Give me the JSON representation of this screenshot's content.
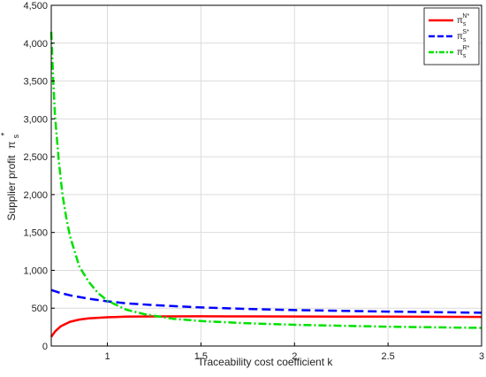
{
  "chart_data": {
    "type": "line",
    "xlabel": "Traceability cost coefficient k",
    "ylabel_main": "Supplier profit",
    "ylabel_symbol": "π",
    "ylabel_sub": "s",
    "ylabel_sup": "*",
    "xlim": [
      0.7,
      3.0
    ],
    "ylim": [
      0,
      4500
    ],
    "x_ticks": [
      {
        "v": 1,
        "label": "1"
      },
      {
        "v": 1.5,
        "label": "1.5"
      },
      {
        "v": 2,
        "label": "2"
      },
      {
        "v": 2.5,
        "label": "2.5"
      },
      {
        "v": 3,
        "label": "3"
      }
    ],
    "y_ticks": [
      {
        "v": 0,
        "label": "0"
      },
      {
        "v": 500,
        "label": "500"
      },
      {
        "v": 1000,
        "label": "1,000"
      },
      {
        "v": 1500,
        "label": "1,500"
      },
      {
        "v": 2000,
        "label": "2,000"
      },
      {
        "v": 2500,
        "label": "2,500"
      },
      {
        "v": 3000,
        "label": "3,000"
      },
      {
        "v": 3500,
        "label": "3,500"
      },
      {
        "v": 4000,
        "label": "4,000"
      },
      {
        "v": 4500,
        "label": "4,500"
      }
    ],
    "grid": true,
    "legend_position": "top-right",
    "series": [
      {
        "name_sym": "π",
        "name_sub": "s",
        "name_sup": "N*",
        "color": "#ff0000",
        "dash": "solid",
        "x": [
          0.7,
          0.72,
          0.75,
          0.8,
          0.85,
          0.9,
          1.0,
          1.1,
          1.2,
          1.3,
          1.5,
          1.75,
          2.0,
          2.5,
          3.0
        ],
        "y": [
          120,
          190,
          260,
          320,
          350,
          365,
          380,
          388,
          390,
          392,
          393,
          392,
          390,
          388,
          385
        ]
      },
      {
        "name_sym": "π",
        "name_sub": "s",
        "name_sup": "S*",
        "color": "#0000ff",
        "dash": "dashed",
        "x": [
          0.7,
          0.75,
          0.8,
          0.9,
          1.0,
          1.1,
          1.25,
          1.5,
          1.75,
          2.0,
          2.25,
          2.5,
          2.75,
          3.0
        ],
        "y": [
          740,
          700,
          670,
          625,
          590,
          565,
          540,
          510,
          490,
          475,
          465,
          455,
          448,
          440
        ]
      },
      {
        "name_sym": "π",
        "name_sub": "s",
        "name_sup": "R*",
        "color": "#00e000",
        "dash": "dashdot",
        "x": [
          0.7,
          0.71,
          0.72,
          0.74,
          0.76,
          0.78,
          0.8,
          0.85,
          0.9,
          0.95,
          1.0,
          1.1,
          1.2,
          1.35,
          1.5,
          1.75,
          2.0,
          2.5,
          3.0
        ],
        "y": [
          4150,
          3550,
          3050,
          2450,
          2000,
          1700,
          1450,
          1050,
          850,
          700,
          600,
          480,
          420,
          360,
          330,
          300,
          280,
          255,
          240
        ]
      }
    ]
  }
}
